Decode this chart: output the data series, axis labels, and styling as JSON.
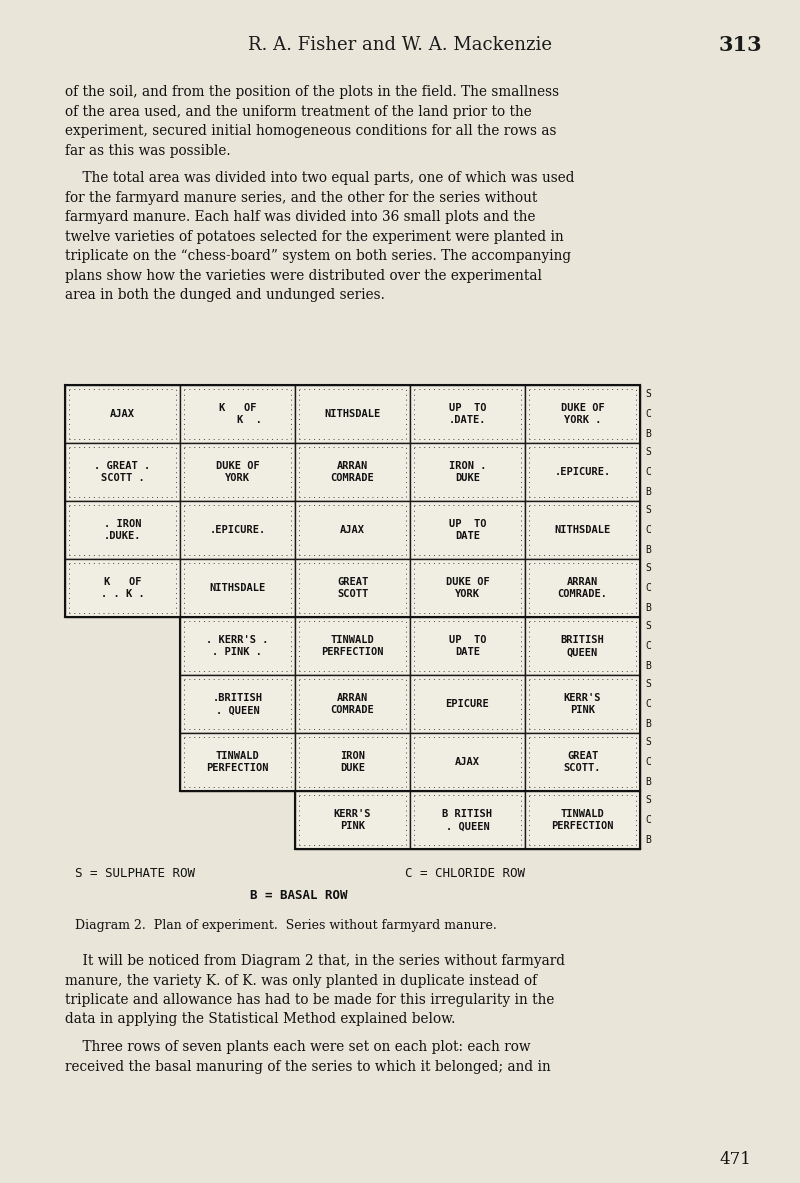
{
  "bg_color": "#e9e5d9",
  "page_width": 8.0,
  "page_height": 11.83,
  "header_text_left": "R. A. F",
  "header_text": "R. A. Fisher and W. A. Mackenzie",
  "page_number": "313",
  "body_text_1_lines": [
    "of the soil, and from the position of the plots in the field. The smallness",
    "of the area used, and the uniform treatment of the land prior to the",
    "experiment, secured initial homogeneous conditions for all the rows as",
    "far as this was possible."
  ],
  "body_text_2_lines": [
    "    The total area was divided into two equal parts, one of which was used",
    "for the farmyard manure series, and the other for the series without",
    "farmyard manure. Each half was divided into 36 small plots and the",
    "twelve varieties of potatoes selected for the experiment were planted in",
    "triplicate on the “chess-board” system on both series. The accompanying",
    "plans show how the varieties were distributed over the experimental",
    "area in both the dunged and undunged series."
  ],
  "footer_legend_1": "S = SULPHATE ROW",
  "footer_legend_2": "C = CHLORIDE ROW",
  "footer_legend_3": "B = BASAL ROW",
  "diagram_caption": "Diagram 2.  Plan of experiment.  Series without farmyard manure.",
  "body_text_3_lines": [
    "    It will be noticed from Diagram 2 that, in the series without farmyard",
    "manure, the variety K. of K. was only planted in duplicate instead of",
    "triplicate and allowance has had to be made for this irregularity in the",
    "data in applying the Statistical Method explained below."
  ],
  "body_text_4_lines": [
    "    Three rows of seven plants each were set on each plot: each row",
    "received the basal manuring of the series to which it belonged; and in"
  ],
  "page_footer_number": "471",
  "grid": {
    "rows": 8,
    "cols": 5,
    "cells": [
      [
        {
          "text": "AJAX\n. . . . . . .",
          "empty": false
        },
        {
          "text": "K   OF\n    K  .\n. . . . . .",
          "empty": false
        },
        {
          "text": "NITHSDALE\n. . . . . . .",
          "empty": false
        },
        {
          "text": "UP  TO\n.DATE.\n. . . . . .",
          "empty": false
        },
        {
          "text": "DUKE OF\nYORK .\n. . . . . .",
          "empty": false
        }
      ],
      [
        {
          "text": ". GREAT .\nSCOTT .\n. . . . . .",
          "empty": false
        },
        {
          "text": "DUKE OF\nYORK\n. . . . . .",
          "empty": false
        },
        {
          "text": "ARRAN\nCOMRADE\n. . . . . .",
          "empty": false
        },
        {
          "text": "IRON .\nDUKE\n. . . . . .",
          "empty": false
        },
        {
          "text": ".EPICURE.\n. . . . . .",
          "empty": false
        }
      ],
      [
        {
          "text": ". IRON\n.DUKE.\n. . . . . .",
          "empty": false
        },
        {
          "text": ".EPICURE.\n. . . . . .",
          "empty": false
        },
        {
          "text": "AJAX\n. . . . . .",
          "empty": false
        },
        {
          "text": "UP  TO\nDATE\n. . . . . .",
          "empty": false
        },
        {
          "text": "NITHSDALE\n. . . . . .",
          "empty": false
        }
      ],
      [
        {
          "text": "K   OF\n. . K .\n. . . . . .",
          "empty": false
        },
        {
          "text": "NITHSDALE\n. . . . . .",
          "empty": false
        },
        {
          "text": "GREAT\nSCOTT\n. . . . . .",
          "empty": false
        },
        {
          "text": "DUKE OF\nYORK\n. . . . . .",
          "empty": false
        },
        {
          "text": "ARRAN\nCOMRADE.\n. . . . . .",
          "empty": false
        }
      ],
      [
        {
          "text": "",
          "empty": true
        },
        {
          "text": ". KERR'S .\n. PINK .\n. . . . . .",
          "empty": false
        },
        {
          "text": "TINWALD\nPERFECTION\n. . . . . .",
          "empty": false
        },
        {
          "text": "UP  TO\nDATE\n. . . . . .",
          "empty": false
        },
        {
          "text": "BRITISH\nQUEEN\n. . . . . .",
          "empty": false
        }
      ],
      [
        {
          "text": "",
          "empty": true
        },
        {
          "text": ".BRITISH\n. QUEEN\n. . . . . .",
          "empty": false
        },
        {
          "text": "ARRAN\nCOMRADE\n. . . . . .",
          "empty": false
        },
        {
          "text": "EPICURE\n. . . . . .",
          "empty": false
        },
        {
          "text": "KERR'S\nPINK\n. . . . . .",
          "empty": false
        }
      ],
      [
        {
          "text": "",
          "empty": true
        },
        {
          "text": "TINWALD\nPERFECTION\n. . . . . .",
          "empty": false
        },
        {
          "text": "IRON\nDUKE\n. . . . . .",
          "empty": false
        },
        {
          "text": "AJAX\n. . . . . .",
          "empty": false
        },
        {
          "text": "GREAT\nSCOTT.\n. . . . . .",
          "empty": false
        }
      ],
      [
        {
          "text": "",
          "empty": true
        },
        {
          "text": "",
          "empty": true
        },
        {
          "text": "KERR'S\nPINK\n. . . . . .",
          "empty": false
        },
        {
          "text": "B RITISH\n. QUEEN\n. . . . . .",
          "empty": false
        },
        {
          "text": "TINWALD\nPERFECTION\n. . . . . .",
          "empty": false
        }
      ]
    ]
  }
}
